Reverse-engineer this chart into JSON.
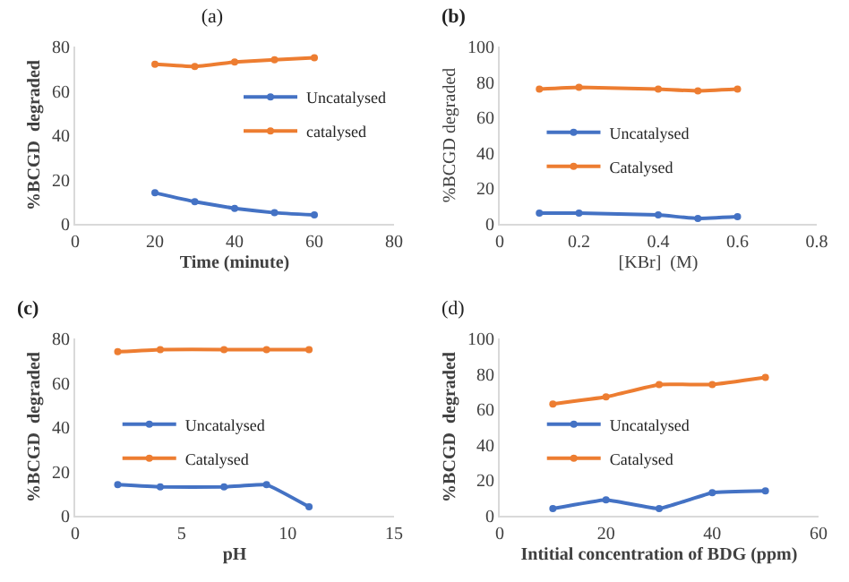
{
  "chart_data": [
    {
      "type": "line",
      "title": "(a)",
      "xlabel": "Time (minute)",
      "ylabel": "%BCGD  degraded",
      "x": [
        20,
        30,
        40,
        50,
        60
      ],
      "series": [
        {
          "name": "Uncatalysed",
          "color": "#4472c4",
          "values": [
            14,
            10,
            7,
            5,
            4
          ]
        },
        {
          "name": "catalysed",
          "color": "#ed7d31",
          "values": [
            72,
            71,
            73,
            74,
            75
          ]
        }
      ],
      "xlim": [
        0,
        80
      ],
      "xticks": [
        0,
        20,
        40,
        60,
        80
      ],
      "ylim": [
        0,
        80
      ],
      "yticks": [
        0,
        20,
        40,
        60,
        80
      ],
      "legend": "right",
      "marker": "circle"
    },
    {
      "type": "line",
      "title": "(b)",
      "xlabel": "[KBr]  (M)",
      "ylabel": "%BCGD degraded",
      "x": [
        0.1,
        0.2,
        0.4,
        0.5,
        0.6
      ],
      "series": [
        {
          "name": "Uncatalysed",
          "color": "#4472c4",
          "values": [
            6,
            6,
            5,
            3,
            4
          ]
        },
        {
          "name": "Catalysed",
          "color": "#ed7d31",
          "values": [
            76,
            77,
            76,
            75,
            76
          ]
        }
      ],
      "xlim": [
        0,
        0.8
      ],
      "xticks": [
        0,
        0.2,
        0.4,
        0.6,
        0.8
      ],
      "ylim": [
        0,
        100
      ],
      "yticks": [
        0,
        20,
        40,
        60,
        80,
        100
      ],
      "legend": "left",
      "marker": "circle"
    },
    {
      "type": "line",
      "title": "(c)",
      "xlabel": "pH",
      "ylabel": "%BCGD  degraded",
      "x": [
        2,
        4,
        7,
        9,
        11
      ],
      "series": [
        {
          "name": "Uncatalysed",
          "color": "#4472c4",
          "values": [
            14,
            13,
            13,
            14,
            4
          ]
        },
        {
          "name": "Catalysed",
          "color": "#ed7d31",
          "values": [
            74,
            75,
            75,
            75,
            75
          ]
        }
      ],
      "xlim": [
        0,
        15
      ],
      "xticks": [
        0,
        5,
        10,
        15
      ],
      "ylim": [
        0,
        80
      ],
      "yticks": [
        0,
        20,
        40,
        60,
        80
      ],
      "legend": "left",
      "marker": "circle"
    },
    {
      "type": "line",
      "title": "(d)",
      "xlabel": "Intitial concentration of BDG (ppm)",
      "ylabel": "%BCGD  degraded",
      "x": [
        10,
        20,
        30,
        40,
        50
      ],
      "series": [
        {
          "name": "Uncatalysed",
          "color": "#4472c4",
          "values": [
            4,
            9,
            4,
            13,
            14
          ]
        },
        {
          "name": "Catalysed",
          "color": "#ed7d31",
          "values": [
            63,
            67,
            74,
            74,
            78
          ]
        }
      ],
      "xlim": [
        0,
        60
      ],
      "xticks": [
        0,
        20,
        40,
        60
      ],
      "ylim": [
        0,
        100
      ],
      "yticks": [
        0,
        20,
        40,
        60,
        80,
        100
      ],
      "legend": "left",
      "marker": "circle"
    }
  ]
}
